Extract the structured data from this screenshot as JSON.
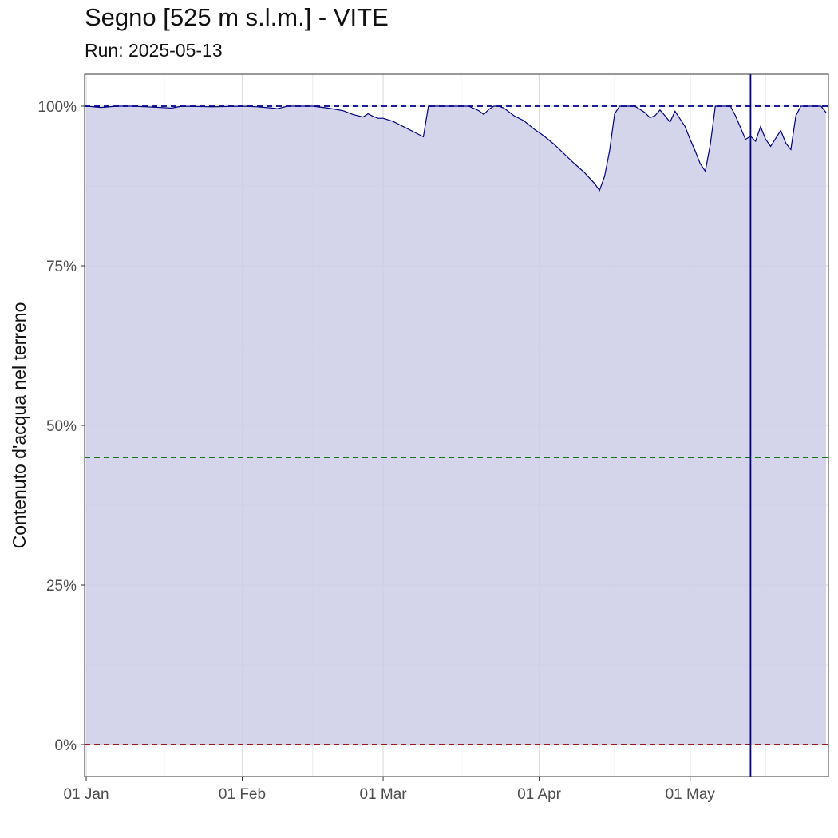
{
  "chart_data": {
    "type": "area",
    "title": "Segno [525 m s.l.m.] - VITE",
    "subtitle": "Run: 2025-05-13",
    "xlabel": "",
    "ylabel": "Contenuto d'acqua nel terreno",
    "x_start": "2025-01-01",
    "x_end": "2025-05-28",
    "x_ticks": [
      {
        "date": "2025-01-01",
        "label": "01 Jan"
      },
      {
        "date": "2025-02-01",
        "label": "01 Feb"
      },
      {
        "date": "2025-03-01",
        "label": "01 Mar"
      },
      {
        "date": "2025-04-01",
        "label": "01 Apr"
      },
      {
        "date": "2025-05-01",
        "label": "01 May"
      }
    ],
    "ylim": [
      -0.05,
      1.05
    ],
    "y_ticks": [
      {
        "value": 0,
        "label": "0%"
      },
      {
        "value": 0.25,
        "label": "25%"
      },
      {
        "value": 0.5,
        "label": "50%"
      },
      {
        "value": 0.75,
        "label": "75%"
      },
      {
        "value": 1.0,
        "label": "100%"
      }
    ],
    "grid": true,
    "series": [
      {
        "color": "#000080",
        "fill": "#cccce8",
        "points": [
          [
            "2025-01-01",
            1.0
          ],
          [
            "2025-01-04",
            0.998
          ],
          [
            "2025-01-07",
            1.0
          ],
          [
            "2025-01-10",
            1.0
          ],
          [
            "2025-01-13",
            0.999
          ],
          [
            "2025-01-18",
            0.997
          ],
          [
            "2025-01-20",
            1.0
          ],
          [
            "2025-01-26",
            0.999
          ],
          [
            "2025-02-01",
            1.0
          ],
          [
            "2025-02-04",
            0.999
          ],
          [
            "2025-02-07",
            0.997
          ],
          [
            "2025-02-08",
            0.996
          ],
          [
            "2025-02-10",
            1.0
          ],
          [
            "2025-02-15",
            1.0
          ],
          [
            "2025-02-18",
            0.997
          ],
          [
            "2025-02-21",
            0.993
          ],
          [
            "2025-02-23",
            0.987
          ],
          [
            "2025-02-25",
            0.983
          ],
          [
            "2025-02-26",
            0.988
          ],
          [
            "2025-02-27",
            0.984
          ],
          [
            "2025-02-28",
            0.981
          ],
          [
            "2025-03-01",
            0.981
          ],
          [
            "2025-03-03",
            0.976
          ],
          [
            "2025-03-05",
            0.968
          ],
          [
            "2025-03-07",
            0.96
          ],
          [
            "2025-03-09",
            0.952
          ],
          [
            "2025-03-10",
            1.0
          ],
          [
            "2025-03-14",
            1.0
          ],
          [
            "2025-03-18",
            1.0
          ],
          [
            "2025-03-20",
            0.993
          ],
          [
            "2025-03-21",
            0.987
          ],
          [
            "2025-03-22",
            0.995
          ],
          [
            "2025-03-23",
            1.0
          ],
          [
            "2025-03-24",
            1.0
          ],
          [
            "2025-03-25",
            0.997
          ],
          [
            "2025-03-27",
            0.985
          ],
          [
            "2025-03-29",
            0.977
          ],
          [
            "2025-03-31",
            0.964
          ],
          [
            "2025-04-02",
            0.953
          ],
          [
            "2025-04-04",
            0.94
          ],
          [
            "2025-04-06",
            0.925
          ],
          [
            "2025-04-08",
            0.91
          ],
          [
            "2025-04-10",
            0.896
          ],
          [
            "2025-04-12",
            0.879
          ],
          [
            "2025-04-13",
            0.868
          ],
          [
            "2025-04-14",
            0.89
          ],
          [
            "2025-04-15",
            0.93
          ],
          [
            "2025-04-16",
            0.988
          ],
          [
            "2025-04-17",
            1.0
          ],
          [
            "2025-04-20",
            1.0
          ],
          [
            "2025-04-22",
            0.99
          ],
          [
            "2025-04-23",
            0.982
          ],
          [
            "2025-04-24",
            0.985
          ],
          [
            "2025-04-25",
            0.994
          ],
          [
            "2025-04-26",
            0.985
          ],
          [
            "2025-04-27",
            0.975
          ],
          [
            "2025-04-28",
            0.992
          ],
          [
            "2025-04-30",
            0.968
          ],
          [
            "2025-05-01",
            0.948
          ],
          [
            "2025-05-02",
            0.93
          ],
          [
            "2025-05-03",
            0.91
          ],
          [
            "2025-05-04",
            0.898
          ],
          [
            "2025-05-05",
            0.94
          ],
          [
            "2025-05-06",
            1.0
          ],
          [
            "2025-05-09",
            1.0
          ],
          [
            "2025-05-10",
            0.985
          ],
          [
            "2025-05-12",
            0.948
          ],
          [
            "2025-05-13",
            0.953
          ],
          [
            "2025-05-14",
            0.945
          ],
          [
            "2025-05-15",
            0.968
          ],
          [
            "2025-05-16",
            0.948
          ],
          [
            "2025-05-17",
            0.937
          ],
          [
            "2025-05-19",
            0.962
          ],
          [
            "2025-05-20",
            0.942
          ],
          [
            "2025-05-21",
            0.932
          ],
          [
            "2025-05-22",
            0.985
          ],
          [
            "2025-05-23",
            1.0
          ],
          [
            "2025-05-27",
            1.0
          ],
          [
            "2025-05-28",
            0.99
          ]
        ]
      }
    ],
    "reference_lines": [
      {
        "value": 1.0,
        "color": "#00008b",
        "style": "dashed"
      },
      {
        "value": 0.45,
        "color": "#006400",
        "style": "dashed"
      },
      {
        "value": 0.0,
        "color": "#8b0000",
        "style": "dashed"
      }
    ],
    "vertical_line": {
      "date": "2025-05-13",
      "color": "#000080"
    }
  }
}
